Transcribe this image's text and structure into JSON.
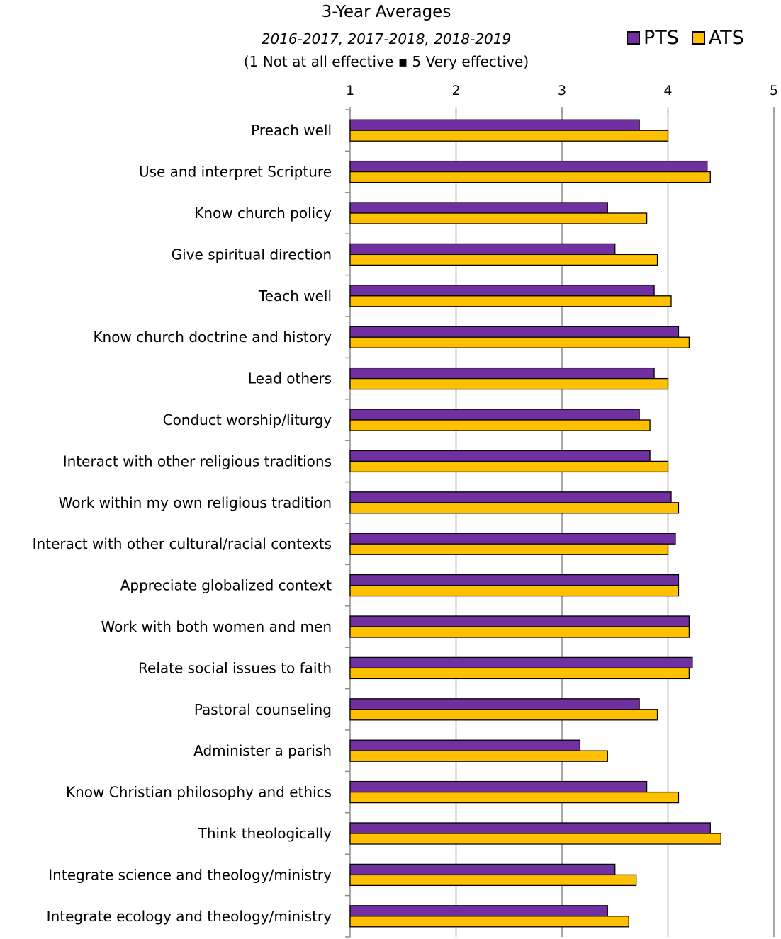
{
  "chart_data": {
    "type": "bar",
    "orientation": "horizontal",
    "title": "3-Year Averages",
    "subtitle": "2016-2017, 2017-2018, 2018-2019",
    "note": "(1 Not at all effective ▪ 5 Very effective)",
    "xlim": [
      1,
      5
    ],
    "xticks": [
      "1",
      "2",
      "3",
      "4",
      "5"
    ],
    "grid": true,
    "legend_position": "top-right",
    "categories": [
      "Preach well",
      "Use and interpret Scripture",
      "Know church policy",
      "Give spiritual direction",
      "Teach well",
      "Know church doctrine and history",
      "Lead others",
      "Conduct worship/liturgy",
      "Interact with other religious traditions",
      "Work within my own religious tradition",
      "Interact with other cultural/racial contexts",
      "Appreciate globalized context",
      "Work with both women and men",
      "Relate social issues to faith",
      "Pastoral counseling",
      "Administer a parish",
      "Know Christian philosophy and ethics",
      "Think theologically",
      "Integrate science and theology/ministry",
      "Integrate ecology and theology/ministry"
    ],
    "series": [
      {
        "name": "PTS",
        "color": "#7030a0",
        "values": [
          3.73,
          4.37,
          3.43,
          3.5,
          3.87,
          4.1,
          3.87,
          3.73,
          3.83,
          4.03,
          4.07,
          4.1,
          4.2,
          4.23,
          3.73,
          3.17,
          3.8,
          4.4,
          3.5,
          3.43
        ]
      },
      {
        "name": "ATS",
        "color": "#ffc000",
        "values": [
          4.0,
          4.4,
          3.8,
          3.9,
          4.03,
          4.2,
          4.0,
          3.83,
          4.0,
          4.1,
          4.0,
          4.1,
          4.2,
          4.2,
          3.9,
          3.43,
          4.1,
          4.5,
          3.7,
          3.63
        ]
      }
    ]
  }
}
